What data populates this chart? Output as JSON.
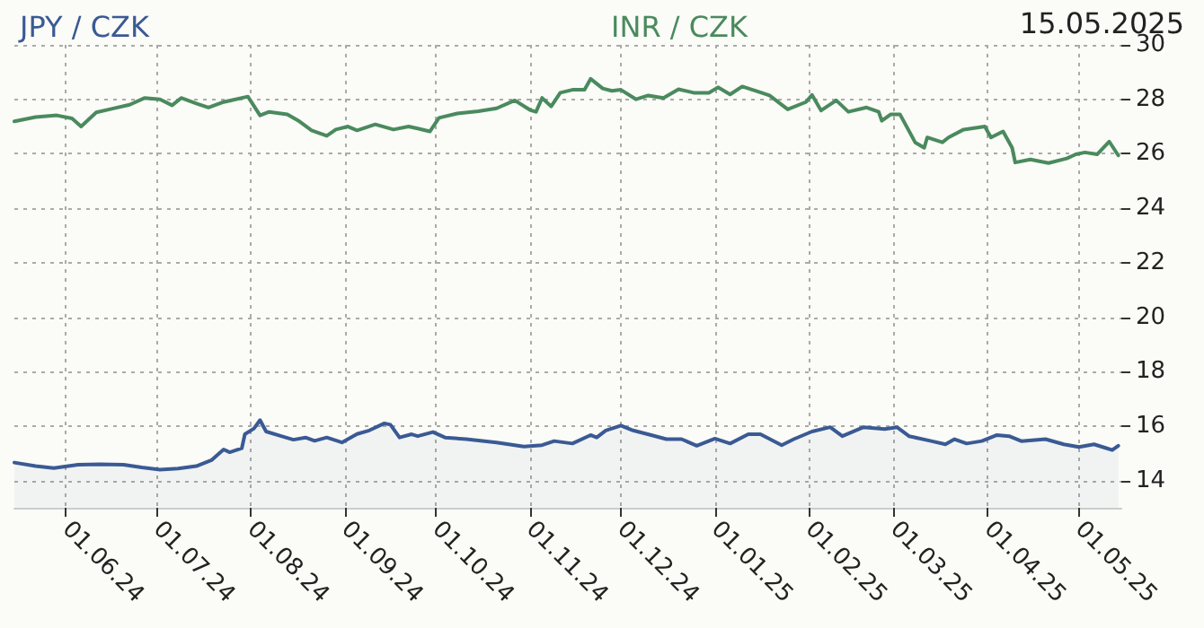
{
  "chart_data": {
    "type": "line",
    "annotations": [
      "15.05.2025"
    ],
    "xlim": [
      "2024-05-15",
      "2025-05-15"
    ],
    "xticks": [
      {
        "value": "2024-06-01",
        "label": "01.06.24"
      },
      {
        "value": "2024-07-01",
        "label": "01.07.24"
      },
      {
        "value": "2024-08-01",
        "label": "01.08.24"
      },
      {
        "value": "2024-09-01",
        "label": "01.09.24"
      },
      {
        "value": "2024-10-01",
        "label": "01.10.24"
      },
      {
        "value": "2024-11-01",
        "label": "01.11.24"
      },
      {
        "value": "2024-12-01",
        "label": "01.12.24"
      },
      {
        "value": "2025-01-01",
        "label": "01.01.25"
      },
      {
        "value": "2025-02-01",
        "label": "01.02.25"
      },
      {
        "value": "2025-03-01",
        "label": "01.03.25"
      },
      {
        "value": "2025-04-01",
        "label": "01.04.25"
      },
      {
        "value": "2025-05-01",
        "label": "01.05.25"
      }
    ],
    "ylim": [
      13,
      30
    ],
    "yticks": [
      14,
      16,
      18,
      20,
      22,
      24,
      26,
      28,
      30
    ],
    "grid": true,
    "series": [
      {
        "name": "JPY / CZK",
        "type": "area",
        "color": "#3a5a94",
        "x": [
          "2024-05-15",
          "2024-05-22",
          "2024-05-28",
          "2024-06-05",
          "2024-06-12",
          "2024-06-20",
          "2024-06-26",
          "2024-07-02",
          "2024-07-08",
          "2024-07-14",
          "2024-07-19",
          "2024-07-23",
          "2024-07-25",
          "2024-07-29",
          "2024-07-30",
          "2024-08-02",
          "2024-08-04",
          "2024-08-06",
          "2024-08-11",
          "2024-08-15",
          "2024-08-19",
          "2024-08-22",
          "2024-08-26",
          "2024-08-31",
          "2024-09-05",
          "2024-09-09",
          "2024-09-14",
          "2024-09-16",
          "2024-09-19",
          "2024-09-23",
          "2024-09-25",
          "2024-09-30",
          "2024-10-04",
          "2024-10-11",
          "2024-10-21",
          "2024-10-30",
          "2024-11-05",
          "2024-11-09",
          "2024-11-15",
          "2024-11-21",
          "2024-11-23",
          "2024-11-26",
          "2024-12-01",
          "2024-12-05",
          "2024-12-11",
          "2024-12-16",
          "2024-12-21",
          "2024-12-26",
          "2025-01-01",
          "2025-01-06",
          "2025-01-12",
          "2025-01-16",
          "2025-01-23",
          "2025-01-27",
          "2025-02-02",
          "2025-02-08",
          "2025-02-12",
          "2025-02-19",
          "2025-02-26",
          "2025-03-02",
          "2025-03-06",
          "2025-03-13",
          "2025-03-18",
          "2025-03-21",
          "2025-03-25",
          "2025-03-30",
          "2025-04-04",
          "2025-04-08",
          "2025-04-12",
          "2025-04-20",
          "2025-04-26",
          "2025-05-01",
          "2025-05-06",
          "2025-05-10",
          "2025-05-12",
          "2025-05-14"
        ],
        "values": [
          14.66,
          14.53,
          14.46,
          14.58,
          14.6,
          14.58,
          14.48,
          14.4,
          14.44,
          14.53,
          14.75,
          15.14,
          15.04,
          15.19,
          15.7,
          15.91,
          16.22,
          15.8,
          15.63,
          15.5,
          15.58,
          15.46,
          15.58,
          15.4,
          15.71,
          15.84,
          16.1,
          16.05,
          15.58,
          15.7,
          15.63,
          15.78,
          15.58,
          15.52,
          15.4,
          15.25,
          15.3,
          15.45,
          15.36,
          15.67,
          15.58,
          15.84,
          16.02,
          15.84,
          15.67,
          15.52,
          15.52,
          15.28,
          15.54,
          15.36,
          15.7,
          15.7,
          15.3,
          15.52,
          15.8,
          15.96,
          15.63,
          15.96,
          15.89,
          15.96,
          15.63,
          15.46,
          15.33,
          15.52,
          15.36,
          15.45,
          15.67,
          15.63,
          15.45,
          15.52,
          15.33,
          15.23,
          15.33,
          15.19,
          15.12,
          15.28
        ]
      },
      {
        "name": "INR / CZK",
        "color": "#4a8a5e",
        "x": [
          "2024-05-15",
          "2024-05-22",
          "2024-05-29",
          "2024-06-03",
          "2024-06-06",
          "2024-06-11",
          "2024-06-16",
          "2024-06-22",
          "2024-06-27",
          "2024-07-02",
          "2024-07-06",
          "2024-07-09",
          "2024-07-14",
          "2024-07-18",
          "2024-07-23",
          "2024-07-31",
          "2024-08-04",
          "2024-08-07",
          "2024-08-13",
          "2024-08-17",
          "2024-08-21",
          "2024-08-26",
          "2024-08-29",
          "2024-09-02",
          "2024-09-05",
          "2024-09-11",
          "2024-09-17",
          "2024-09-22",
          "2024-09-25",
          "2024-09-29",
          "2024-10-02",
          "2024-10-08",
          "2024-10-15",
          "2024-10-21",
          "2024-10-27",
          "2024-11-01",
          "2024-11-03",
          "2024-11-05",
          "2024-11-08",
          "2024-11-11",
          "2024-11-15",
          "2024-11-19",
          "2024-11-21",
          "2024-11-25",
          "2024-11-28",
          "2024-12-01",
          "2024-12-06",
          "2024-12-10",
          "2024-12-15",
          "2024-12-20",
          "2024-12-25",
          "2024-12-30",
          "2025-01-02",
          "2025-01-06",
          "2025-01-10",
          "2025-01-15",
          "2025-01-19",
          "2025-01-25",
          "2025-01-31",
          "2025-02-02",
          "2025-02-05",
          "2025-02-10",
          "2025-02-14",
          "2025-02-20",
          "2025-02-24",
          "2025-02-25",
          "2025-02-28",
          "2025-03-03",
          "2025-03-08",
          "2025-03-11",
          "2025-03-12",
          "2025-03-17",
          "2025-03-19",
          "2025-03-24",
          "2025-03-28",
          "2025-03-31",
          "2025-04-02",
          "2025-04-06",
          "2025-04-09",
          "2025-04-10",
          "2025-04-15",
          "2025-04-21",
          "2025-04-27",
          "2025-04-30",
          "2025-05-03",
          "2025-05-07",
          "2025-05-11",
          "2025-05-14"
        ],
        "values": [
          27.19,
          27.35,
          27.41,
          27.3,
          27.0,
          27.52,
          27.65,
          27.8,
          28.05,
          28.0,
          27.78,
          28.05,
          27.85,
          27.7,
          27.9,
          28.1,
          27.41,
          27.54,
          27.45,
          27.19,
          26.86,
          26.66,
          26.89,
          27.0,
          26.86,
          27.08,
          26.89,
          27.0,
          26.93,
          26.82,
          27.32,
          27.48,
          27.56,
          27.67,
          27.96,
          27.61,
          27.54,
          28.05,
          27.74,
          28.24,
          28.35,
          28.35,
          28.75,
          28.4,
          28.31,
          28.35,
          28.0,
          28.14,
          28.05,
          28.37,
          28.24,
          28.24,
          28.44,
          28.18,
          28.47,
          28.29,
          28.14,
          27.63,
          27.9,
          28.16,
          27.59,
          27.96,
          27.54,
          27.7,
          27.54,
          27.21,
          27.45,
          27.45,
          26.42,
          26.22,
          26.6,
          26.42,
          26.6,
          26.89,
          26.95,
          27.0,
          26.6,
          26.82,
          26.22,
          25.68,
          25.79,
          25.66,
          25.83,
          25.98,
          26.05,
          25.98,
          26.45,
          25.94
        ]
      }
    ]
  }
}
